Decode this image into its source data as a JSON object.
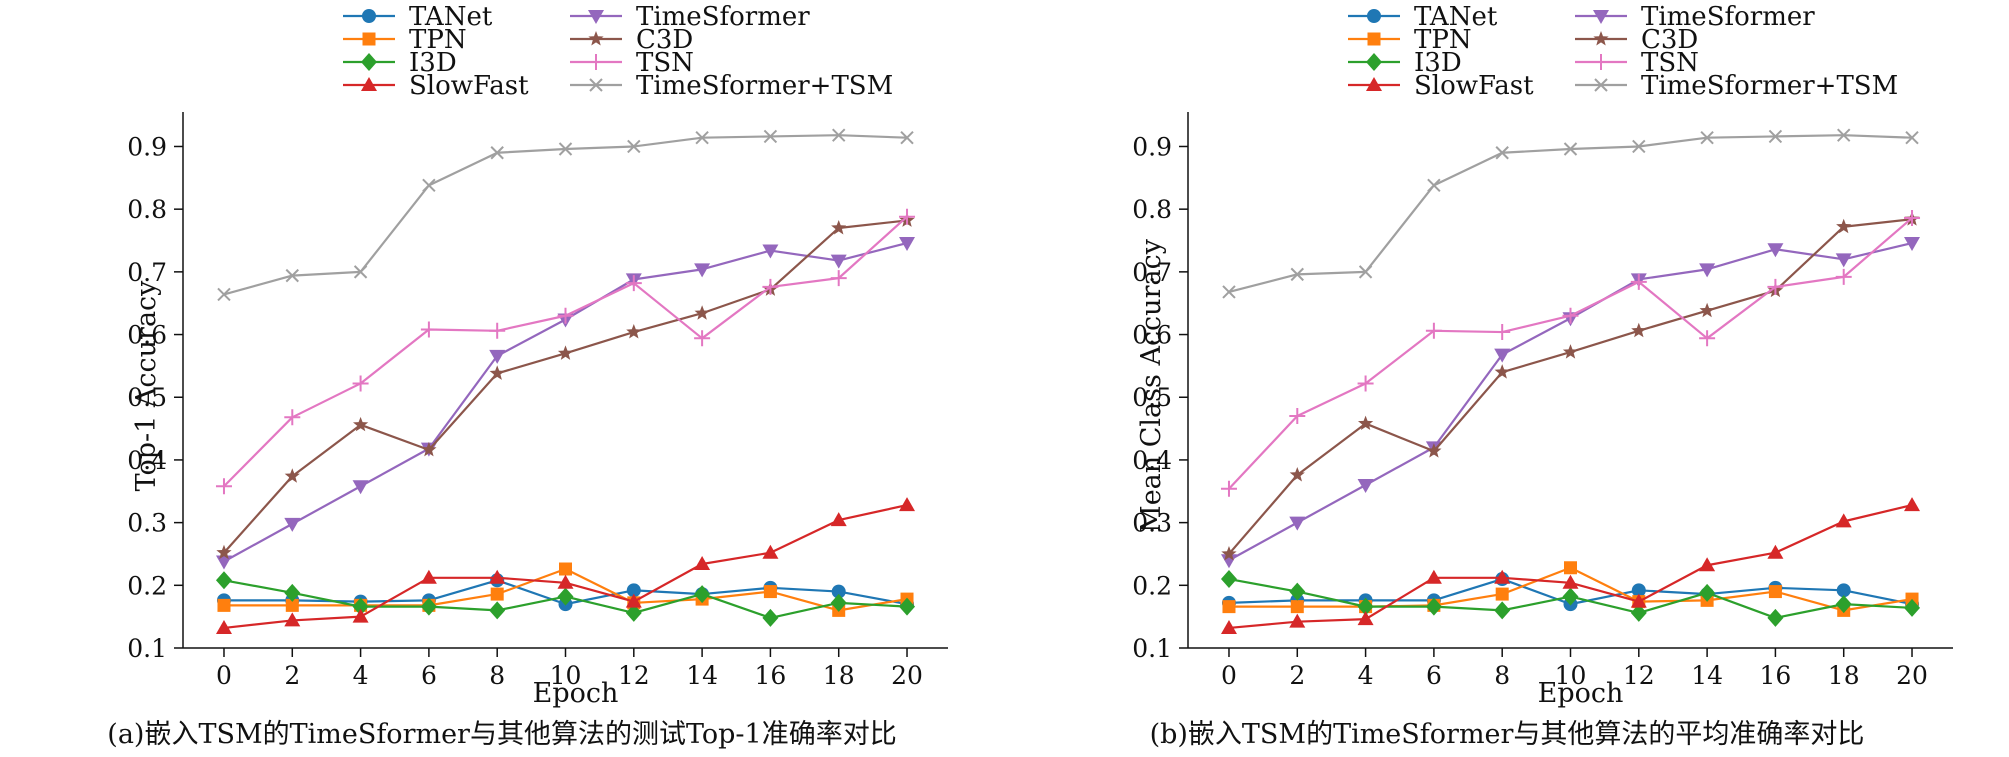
{
  "chart_data": [
    {
      "type": "line",
      "panel": "a",
      "caption": "(a)嵌入TSM的TimeSformer与其他算法的测试Top-1准确率对比",
      "xlabel": "Epoch",
      "ylabel": "Top-1 Accuracy",
      "xlim": [
        -1.2,
        21.2
      ],
      "ylim": [
        0.1,
        0.955
      ],
      "xticks": [
        0,
        2,
        4,
        6,
        8,
        10,
        12,
        14,
        16,
        18,
        20
      ],
      "yticks": [
        0.1,
        0.2,
        0.3,
        0.4,
        0.5,
        0.6,
        0.7,
        0.8,
        0.9
      ],
      "ytick_labels": [
        "0.1",
        "0.2",
        "0.3",
        "0.4",
        "0.5",
        "0.6",
        "0.7",
        "0.8",
        "0.9"
      ],
      "legend_location": "top",
      "x": [
        0,
        2,
        4,
        6,
        8,
        10,
        12,
        14,
        16,
        18,
        20
      ],
      "series": [
        {
          "name": "TANet",
          "color": "#1f77b4",
          "marker": "circle",
          "values": [
            0.176,
            0.176,
            0.174,
            0.176,
            0.208,
            0.17,
            0.192,
            0.186,
            0.196,
            0.19,
            0.17
          ]
        },
        {
          "name": "TPN",
          "color": "#ff7f0e",
          "marker": "square",
          "values": [
            0.168,
            0.168,
            0.168,
            0.168,
            0.186,
            0.226,
            0.172,
            0.178,
            0.19,
            0.16,
            0.178
          ]
        },
        {
          "name": "I3D",
          "color": "#2ca02c",
          "marker": "diamond",
          "values": [
            0.208,
            0.188,
            0.166,
            0.166,
            0.16,
            0.182,
            0.156,
            0.186,
            0.148,
            0.172,
            0.166
          ]
        },
        {
          "name": "SlowFast",
          "color": "#d62728",
          "marker": "triangle-up",
          "values": [
            0.132,
            0.144,
            0.15,
            0.212,
            0.212,
            0.204,
            0.174,
            0.234,
            0.252,
            0.304,
            0.328
          ]
        },
        {
          "name": "TimeSformer",
          "color": "#9467bd",
          "marker": "triangle-down",
          "values": [
            0.238,
            0.298,
            0.358,
            0.418,
            0.566,
            0.624,
            0.688,
            0.704,
            0.734,
            0.718,
            0.746
          ]
        },
        {
          "name": "C3D",
          "color": "#8c564b",
          "marker": "star",
          "values": [
            0.252,
            0.374,
            0.456,
            0.416,
            0.538,
            0.57,
            0.604,
            0.634,
            0.672,
            0.77,
            0.782
          ]
        },
        {
          "name": "TSN",
          "color": "#e377c2",
          "marker": "plus",
          "values": [
            0.358,
            0.468,
            0.522,
            0.608,
            0.606,
            0.63,
            0.682,
            0.594,
            0.676,
            0.69,
            0.788
          ]
        },
        {
          "name": "TimeSformer+TSM",
          "color": "#a0a0a0",
          "marker": "x",
          "values": [
            0.664,
            0.694,
            0.7,
            0.838,
            0.89,
            0.896,
            0.9,
            0.914,
            0.916,
            0.918,
            0.914
          ]
        }
      ]
    },
    {
      "type": "line",
      "panel": "b",
      "caption": "(b)嵌入TSM的TimeSformer与其他算法的平均准确率对比",
      "xlabel": "Epoch",
      "ylabel": "Mean Class Accuracy",
      "xlim": [
        -1.2,
        21.2
      ],
      "ylim": [
        0.1,
        0.955
      ],
      "xticks": [
        0,
        2,
        4,
        6,
        8,
        10,
        12,
        14,
        16,
        18,
        20
      ],
      "yticks": [
        0.1,
        0.2,
        0.3,
        0.4,
        0.5,
        0.6,
        0.7,
        0.8,
        0.9
      ],
      "ytick_labels": [
        "0.1",
        "0.2",
        "0.3",
        "0.4",
        "0.5",
        "0.6",
        "0.7",
        "0.8",
        "0.9"
      ],
      "legend_location": "top",
      "x": [
        0,
        2,
        4,
        6,
        8,
        10,
        12,
        14,
        16,
        18,
        20
      ],
      "series": [
        {
          "name": "TANet",
          "color": "#1f77b4",
          "marker": "circle",
          "values": [
            0.172,
            0.176,
            0.176,
            0.176,
            0.21,
            0.17,
            0.192,
            0.186,
            0.196,
            0.192,
            0.17
          ]
        },
        {
          "name": "TPN",
          "color": "#ff7f0e",
          "marker": "square",
          "values": [
            0.166,
            0.166,
            0.166,
            0.168,
            0.186,
            0.228,
            0.174,
            0.176,
            0.19,
            0.16,
            0.178
          ]
        },
        {
          "name": "I3D",
          "color": "#2ca02c",
          "marker": "diamond",
          "values": [
            0.21,
            0.19,
            0.166,
            0.166,
            0.16,
            0.182,
            0.156,
            0.188,
            0.148,
            0.17,
            0.164
          ]
        },
        {
          "name": "SlowFast",
          "color": "#d62728",
          "marker": "triangle-up",
          "values": [
            0.132,
            0.142,
            0.146,
            0.212,
            0.212,
            0.204,
            0.174,
            0.232,
            0.252,
            0.302,
            0.328
          ]
        },
        {
          "name": "TimeSformer",
          "color": "#9467bd",
          "marker": "triangle-down",
          "values": [
            0.24,
            0.3,
            0.36,
            0.42,
            0.568,
            0.626,
            0.688,
            0.704,
            0.736,
            0.72,
            0.746
          ]
        },
        {
          "name": "C3D",
          "color": "#8c564b",
          "marker": "star",
          "values": [
            0.25,
            0.376,
            0.458,
            0.414,
            0.54,
            0.572,
            0.606,
            0.638,
            0.67,
            0.772,
            0.784
          ]
        },
        {
          "name": "TSN",
          "color": "#e377c2",
          "marker": "plus",
          "values": [
            0.354,
            0.47,
            0.522,
            0.606,
            0.604,
            0.63,
            0.684,
            0.594,
            0.676,
            0.692,
            0.786
          ]
        },
        {
          "name": "TimeSformer+TSM",
          "color": "#a0a0a0",
          "marker": "x",
          "values": [
            0.668,
            0.696,
            0.7,
            0.838,
            0.89,
            0.896,
            0.9,
            0.914,
            0.916,
            0.918,
            0.914
          ]
        }
      ]
    }
  ]
}
